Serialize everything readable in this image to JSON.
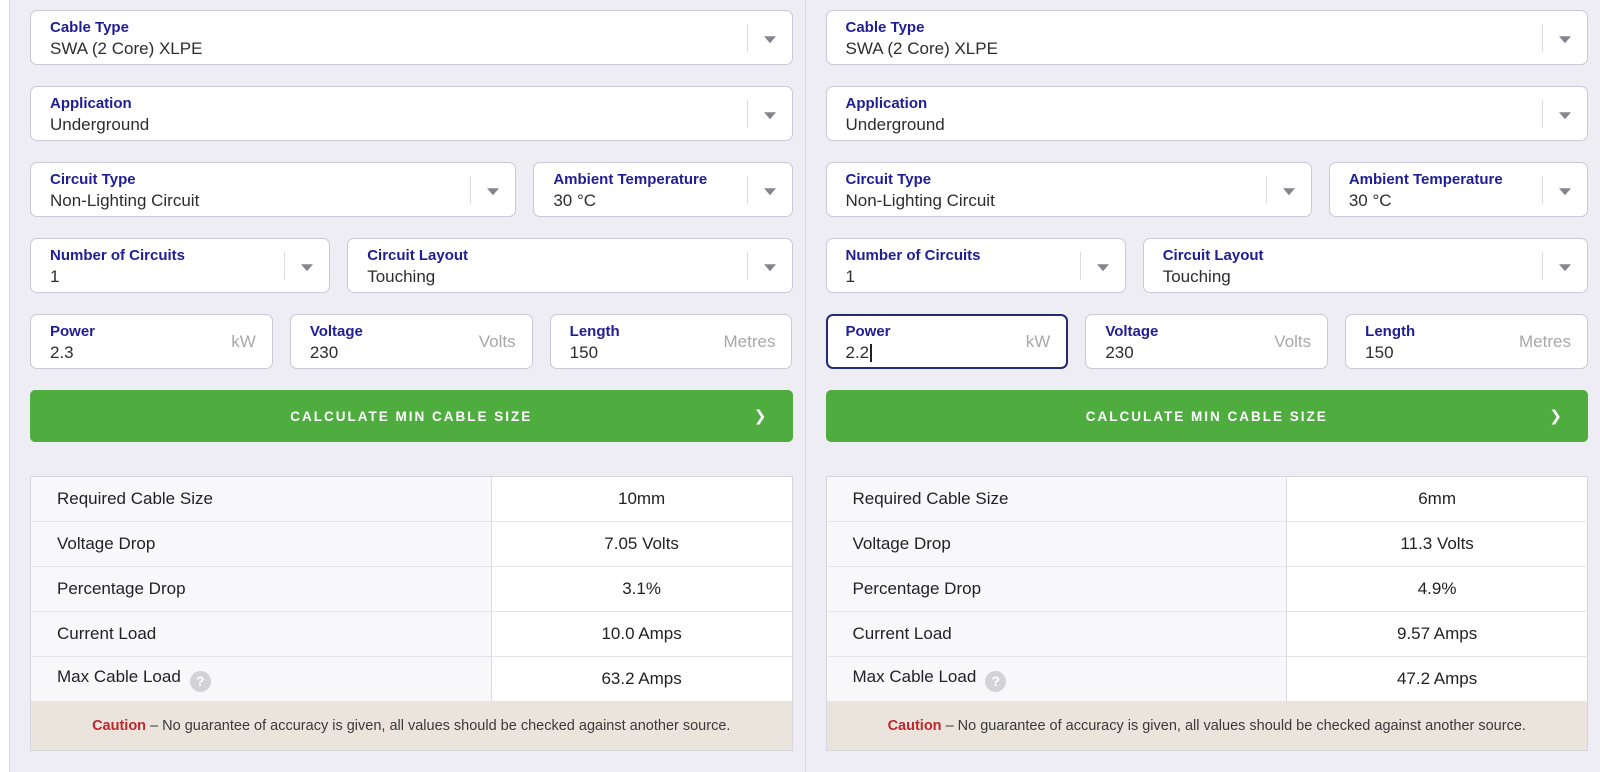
{
  "colors": {
    "accent_green": "#4fad3f",
    "label_navy": "#1e1e96",
    "caution_red": "#c0272d",
    "focus_border": "#232a78",
    "panel_background": "#ededf3"
  },
  "icons": {
    "help": "?",
    "button_chevron": "❯"
  },
  "caution": {
    "word": "Caution",
    "text": "– No guarantee of accuracy is given, all values should be checked against another source."
  },
  "panels": [
    {
      "cable_type": {
        "label": "Cable Type",
        "value": "SWA (2 Core) XLPE"
      },
      "application": {
        "label": "Application",
        "value": "Underground"
      },
      "circuit_type": {
        "label": "Circuit Type",
        "value": "Non-Lighting Circuit"
      },
      "ambient_temperature": {
        "label": "Ambient Temperature",
        "value": "30 °C"
      },
      "number_of_circuits": {
        "label": "Number of Circuits",
        "value": "1"
      },
      "circuit_layout": {
        "label": "Circuit Layout",
        "value": "Touching"
      },
      "power": {
        "label": "Power",
        "value": "2.3",
        "unit": "kW"
      },
      "voltage": {
        "label": "Voltage",
        "value": "230",
        "unit": "Volts"
      },
      "length": {
        "label": "Length",
        "value": "150",
        "unit": "Metres"
      },
      "calculate_button": "CALCULATE MIN CABLE SIZE",
      "results": [
        {
          "label": "Required Cable Size",
          "value": "10mm"
        },
        {
          "label": "Voltage Drop",
          "value": "7.05 Volts"
        },
        {
          "label": "Percentage Drop",
          "value": "3.1%"
        },
        {
          "label": "Current Load",
          "value": "10.0 Amps"
        },
        {
          "label": "Max Cable Load",
          "value": "63.2 Amps"
        }
      ]
    },
    {
      "cable_type": {
        "label": "Cable Type",
        "value": "SWA (2 Core) XLPE"
      },
      "application": {
        "label": "Application",
        "value": "Underground"
      },
      "circuit_type": {
        "label": "Circuit Type",
        "value": "Non-Lighting Circuit"
      },
      "ambient_temperature": {
        "label": "Ambient Temperature",
        "value": "30 °C"
      },
      "number_of_circuits": {
        "label": "Number of Circuits",
        "value": "1"
      },
      "circuit_layout": {
        "label": "Circuit Layout",
        "value": "Touching"
      },
      "power": {
        "label": "Power",
        "value": "2.2",
        "unit": "kW"
      },
      "voltage": {
        "label": "Voltage",
        "value": "230",
        "unit": "Volts"
      },
      "length": {
        "label": "Length",
        "value": "150",
        "unit": "Metres"
      },
      "calculate_button": "CALCULATE MIN CABLE SIZE",
      "results": [
        {
          "label": "Required Cable Size",
          "value": "6mm"
        },
        {
          "label": "Voltage Drop",
          "value": "11.3 Volts"
        },
        {
          "label": "Percentage Drop",
          "value": "4.9%"
        },
        {
          "label": "Current Load",
          "value": "9.57 Amps"
        },
        {
          "label": "Max Cable Load",
          "value": "47.2 Amps"
        }
      ]
    }
  ]
}
